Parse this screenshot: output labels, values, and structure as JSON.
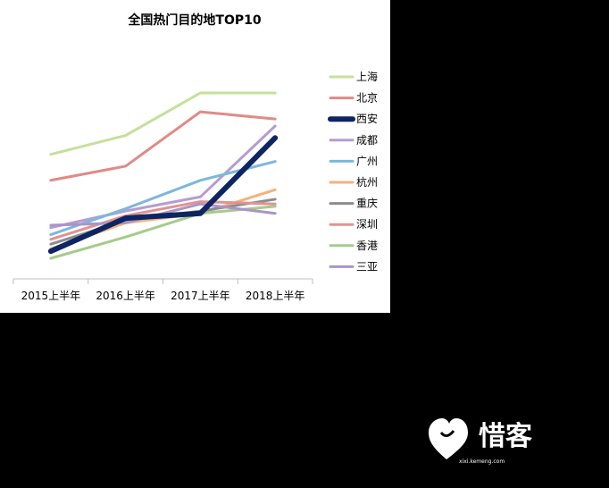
{
  "chart_data": {
    "type": "line",
    "title": "全国热门目的地TOP10",
    "categories": [
      "2015上半年",
      "2016上半年",
      "2017上半年",
      "2018上半年"
    ],
    "xlabel": "",
    "ylabel": "",
    "grid": false,
    "legend_position": "right",
    "series": [
      {
        "name": "上海",
        "color": "#c4e09a",
        "width": 2,
        "values": [
          77,
          85,
          103,
          103
        ]
      },
      {
        "name": "北京",
        "color": "#e08a86",
        "width": 2,
        "values": [
          66,
          72,
          95,
          92
        ]
      },
      {
        "name": "西安",
        "color": "#0d2563",
        "width": 5,
        "values": [
          36,
          50,
          52,
          84
        ]
      },
      {
        "name": "成都",
        "color": "#b69ccf",
        "width": 2,
        "values": [
          46,
          53,
          59,
          89
        ]
      },
      {
        "name": "广州",
        "color": "#7db7dc",
        "width": 2,
        "values": [
          43,
          54,
          66,
          74
        ]
      },
      {
        "name": "杭州",
        "color": "#f4b27c",
        "width": 2,
        "values": [
          37,
          48,
          52,
          62
        ]
      },
      {
        "name": "重庆",
        "color": "#8c8c8c",
        "width": 2,
        "values": [
          39,
          49,
          53,
          58
        ]
      },
      {
        "name": "深圳",
        "color": "#e09391",
        "width": 2,
        "values": [
          41,
          51,
          57,
          56
        ]
      },
      {
        "name": "香港",
        "color": "#a6cb8a",
        "width": 2,
        "values": [
          33,
          42,
          52,
          55
        ]
      },
      {
        "name": "三亚",
        "color": "#a995c6",
        "width": 2,
        "values": [
          47,
          48,
          56,
          52
        ]
      }
    ]
  },
  "watermark": {
    "logo_text": "惜客",
    "logo_subtext": "xixi.kemeng.com",
    "icon": "heart-logo-icon"
  }
}
